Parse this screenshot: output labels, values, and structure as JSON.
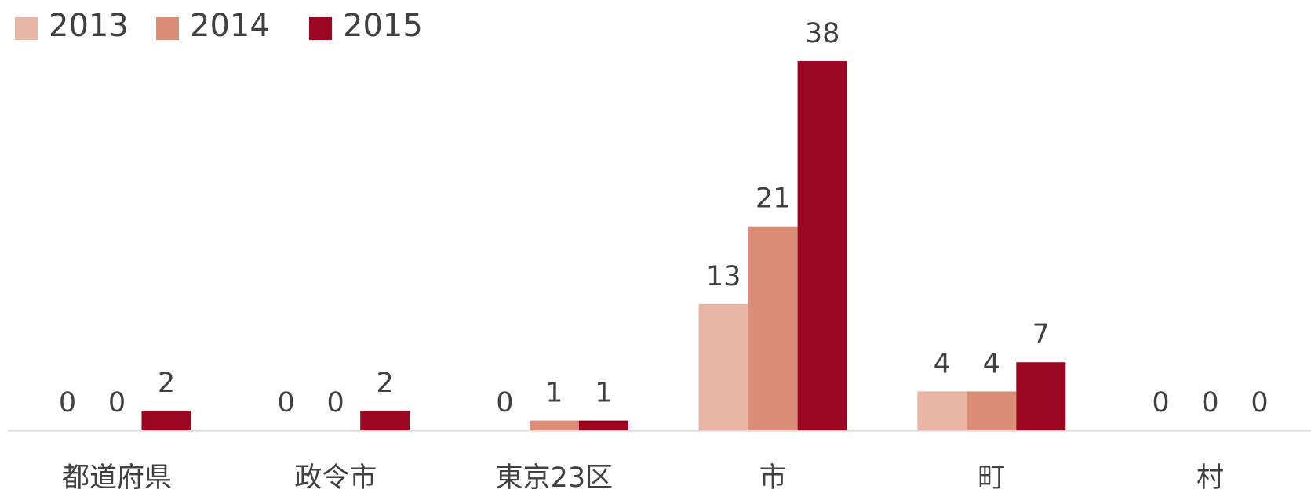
{
  "chart_data": {
    "type": "bar",
    "categories": [
      "都道府県",
      "政令市",
      "東京23区",
      "市",
      "町",
      "村"
    ],
    "series": [
      {
        "name": "2013",
        "color": "#e9b5a5",
        "values": [
          0,
          0,
          0,
          13,
          4,
          0
        ]
      },
      {
        "name": "2014",
        "color": "#dc8d78",
        "values": [
          0,
          0,
          1,
          21,
          4,
          0
        ]
      },
      {
        "name": "2015",
        "color": "#9b0620",
        "values": [
          2,
          2,
          1,
          38,
          7,
          0
        ]
      }
    ],
    "legend": "top-left"
  }
}
